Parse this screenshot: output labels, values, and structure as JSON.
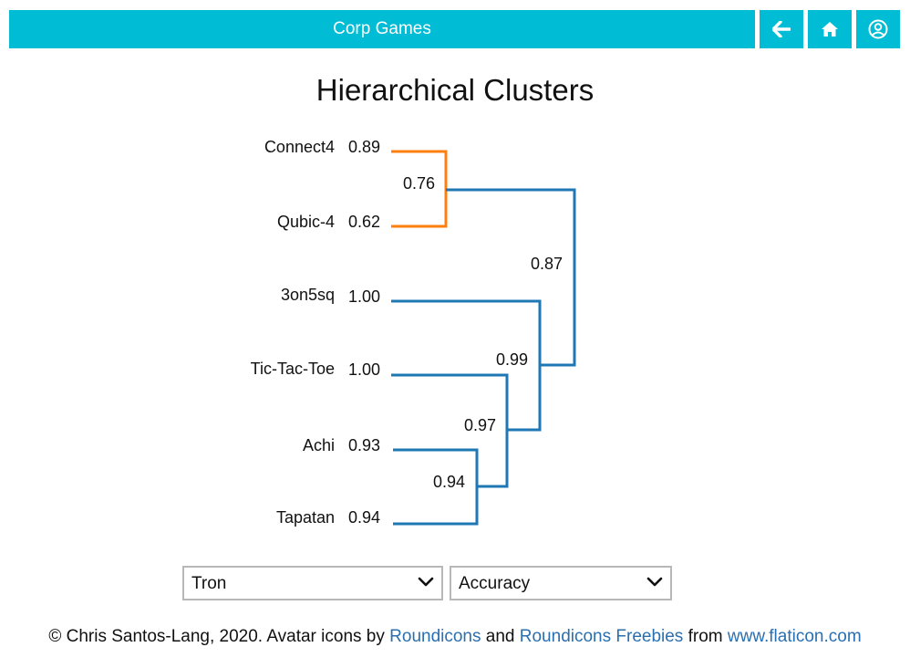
{
  "header": {
    "title": "Corp Games",
    "back_icon": "arrow-left-icon",
    "home_icon": "home-icon",
    "user_icon": "user-circle-icon",
    "color": "#00bcd4"
  },
  "page_title": "Hierarchical Clusters",
  "chart_data": {
    "type": "dendrogram",
    "leaves": [
      {
        "name": "Connect4",
        "value": "0.89"
      },
      {
        "name": "Qubic-4",
        "value": "0.62"
      },
      {
        "name": "3on5sq",
        "value": "1.00"
      },
      {
        "name": "Tic-Tac-Toe",
        "value": "1.00"
      },
      {
        "name": "Achi",
        "value": "0.93"
      },
      {
        "name": "Tapatan",
        "value": "0.94"
      }
    ],
    "merges": [
      {
        "children": [
          "Connect4",
          "Qubic-4"
        ],
        "value": "0.76",
        "color": "#ff7f0e"
      },
      {
        "children": [
          "Achi",
          "Tapatan"
        ],
        "value": "0.94",
        "color": "#1f77b4"
      },
      {
        "children": [
          "Tic-Tac-Toe",
          "Achi+Tapatan"
        ],
        "value": "0.97",
        "color": "#1f77b4"
      },
      {
        "children": [
          "3on5sq",
          "Tic-Tac-Toe+Achi+Tapatan"
        ],
        "value": "0.99",
        "color": "#1f77b4"
      },
      {
        "children": [
          "Connect4+Qubic-4",
          "rest"
        ],
        "value": "0.87",
        "color": "#1f77b4"
      }
    ]
  },
  "controls": {
    "game_select": {
      "value": "Tron",
      "icon": "chevron-down-icon"
    },
    "metric_select": {
      "value": "Accuracy",
      "icon": "chevron-down-icon"
    }
  },
  "footer": {
    "prefix": "© Chris Santos-Lang, 2020. Avatar icons by ",
    "link1": "Roundicons",
    "and": " and ",
    "link2": "Roundicons Freebies",
    "from": " from ",
    "link3": "www.flaticon.com"
  }
}
